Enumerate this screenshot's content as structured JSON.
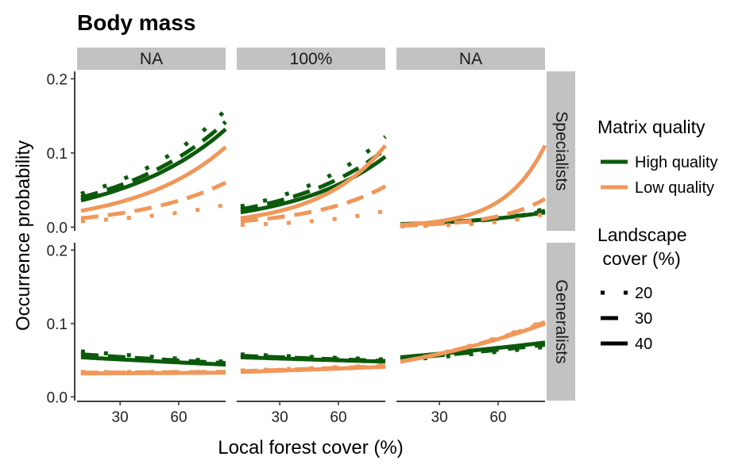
{
  "chart_data": {
    "type": "line",
    "title": "Body mass",
    "xlabel": "Local forest cover (%)",
    "ylabel": "Occurrence probability",
    "xlim": [
      8,
      84
    ],
    "ylim": [
      -0.005,
      0.21
    ],
    "x_ticks": [
      30,
      60
    ],
    "y_ticks": [
      0.0,
      0.1,
      0.2
    ],
    "y_tick_labels": [
      "0.0",
      "0.1",
      "0.2"
    ],
    "grid": false,
    "column_strips": [
      "NA",
      "100%",
      "NA"
    ],
    "row_strips": [
      "Specialists",
      "Generalists"
    ],
    "colors": {
      "High quality": "#0b5a0b",
      "Low quality": "#f0975a"
    },
    "strip_fill": "#c2c2c2",
    "legend": {
      "placement": "right",
      "color_title": "Matrix quality",
      "color_items": [
        "High quality",
        "Low quality"
      ],
      "linetype_title_line1": "Landscape",
      "linetype_title_line2": " cover (%)",
      "linetype_items": [
        "20",
        "30",
        "40"
      ]
    },
    "panels": [
      {
        "row": "Specialists",
        "col": 0,
        "series": [
          {
            "quality": "High quality",
            "cover": "20",
            "x": [
              10,
              84
            ],
            "y": [
              0.045,
              0.158
            ]
          },
          {
            "quality": "High quality",
            "cover": "30",
            "x": [
              10,
              84
            ],
            "y": [
              0.04,
              0.142
            ]
          },
          {
            "quality": "High quality",
            "cover": "40",
            "x": [
              10,
              84
            ],
            "y": [
              0.036,
              0.132
            ]
          },
          {
            "quality": "Low quality",
            "cover": "20",
            "x": [
              10,
              84
            ],
            "y": [
              0.008,
              0.03
            ]
          },
          {
            "quality": "Low quality",
            "cover": "30",
            "x": [
              10,
              84
            ],
            "y": [
              0.012,
              0.06
            ]
          },
          {
            "quality": "Low quality",
            "cover": "40",
            "x": [
              10,
              84
            ],
            "y": [
              0.022,
              0.108
            ]
          }
        ]
      },
      {
        "row": "Specialists",
        "col": 1,
        "series": [
          {
            "quality": "High quality",
            "cover": "20",
            "x": [
              10,
              84
            ],
            "y": [
              0.028,
              0.122
            ]
          },
          {
            "quality": "High quality",
            "cover": "30",
            "x": [
              10,
              84
            ],
            "y": [
              0.024,
              0.105
            ]
          },
          {
            "quality": "High quality",
            "cover": "40",
            "x": [
              10,
              84
            ],
            "y": [
              0.02,
              0.095
            ]
          },
          {
            "quality": "Low quality",
            "cover": "20",
            "x": [
              10,
              84
            ],
            "y": [
              0.003,
              0.022
            ]
          },
          {
            "quality": "Low quality",
            "cover": "30",
            "x": [
              10,
              84
            ],
            "y": [
              0.008,
              0.055
            ]
          },
          {
            "quality": "Low quality",
            "cover": "40",
            "x": [
              10,
              84
            ],
            "y": [
              0.012,
              0.11
            ]
          }
        ]
      },
      {
        "row": "Specialists",
        "col": 2,
        "series": [
          {
            "quality": "High quality",
            "cover": "20",
            "x": [
              10,
              84
            ],
            "y": [
              0.002,
              0.025
            ]
          },
          {
            "quality": "High quality",
            "cover": "30",
            "x": [
              10,
              84
            ],
            "y": [
              0.003,
              0.022
            ]
          },
          {
            "quality": "High quality",
            "cover": "40",
            "x": [
              10,
              84
            ],
            "y": [
              0.004,
              0.02
            ]
          },
          {
            "quality": "Low quality",
            "cover": "20",
            "x": [
              10,
              84
            ],
            "y": [
              0.001,
              0.018
            ]
          },
          {
            "quality": "Low quality",
            "cover": "30",
            "x": [
              10,
              84
            ],
            "y": [
              0.002,
              0.038
            ]
          },
          {
            "quality": "Low quality",
            "cover": "40",
            "x": [
              10,
              84
            ],
            "y": [
              0.003,
              0.11
            ]
          }
        ]
      },
      {
        "row": "Generalists",
        "col": 0,
        "series": [
          {
            "quality": "High quality",
            "cover": "20",
            "x": [
              10,
              84
            ],
            "y": [
              0.062,
              0.048
            ]
          },
          {
            "quality": "High quality",
            "cover": "30",
            "x": [
              10,
              84
            ],
            "y": [
              0.058,
              0.046
            ]
          },
          {
            "quality": "High quality",
            "cover": "40",
            "x": [
              10,
              84
            ],
            "y": [
              0.054,
              0.044
            ]
          },
          {
            "quality": "Low quality",
            "cover": "20",
            "x": [
              10,
              84
            ],
            "y": [
              0.034,
              0.034
            ]
          },
          {
            "quality": "Low quality",
            "cover": "30",
            "x": [
              10,
              84
            ],
            "y": [
              0.033,
              0.034
            ]
          },
          {
            "quality": "Low quality",
            "cover": "40",
            "x": [
              10,
              84
            ],
            "y": [
              0.032,
              0.033
            ]
          }
        ]
      },
      {
        "row": "Generalists",
        "col": 1,
        "series": [
          {
            "quality": "High quality",
            "cover": "20",
            "x": [
              10,
              84
            ],
            "y": [
              0.058,
              0.051
            ]
          },
          {
            "quality": "High quality",
            "cover": "30",
            "x": [
              10,
              84
            ],
            "y": [
              0.056,
              0.049
            ]
          },
          {
            "quality": "High quality",
            "cover": "40",
            "x": [
              10,
              84
            ],
            "y": [
              0.054,
              0.048
            ]
          },
          {
            "quality": "Low quality",
            "cover": "20",
            "x": [
              10,
              84
            ],
            "y": [
              0.036,
              0.043
            ]
          },
          {
            "quality": "Low quality",
            "cover": "30",
            "x": [
              10,
              84
            ],
            "y": [
              0.035,
              0.042
            ]
          },
          {
            "quality": "Low quality",
            "cover": "40",
            "x": [
              10,
              84
            ],
            "y": [
              0.034,
              0.041
            ]
          }
        ]
      },
      {
        "row": "Generalists",
        "col": 2,
        "series": [
          {
            "quality": "High quality",
            "cover": "20",
            "x": [
              10,
              84
            ],
            "y": [
              0.05,
              0.068
            ]
          },
          {
            "quality": "High quality",
            "cover": "30",
            "x": [
              10,
              84
            ],
            "y": [
              0.052,
              0.071
            ]
          },
          {
            "quality": "High quality",
            "cover": "40",
            "x": [
              10,
              84
            ],
            "y": [
              0.054,
              0.074
            ]
          },
          {
            "quality": "Low quality",
            "cover": "20",
            "x": [
              10,
              84
            ],
            "y": [
              0.048,
              0.104
            ]
          },
          {
            "quality": "Low quality",
            "cover": "30",
            "x": [
              10,
              84
            ],
            "y": [
              0.048,
              0.102
            ]
          },
          {
            "quality": "Low quality",
            "cover": "40",
            "x": [
              10,
              84
            ],
            "y": [
              0.048,
              0.1
            ]
          }
        ]
      }
    ]
  }
}
